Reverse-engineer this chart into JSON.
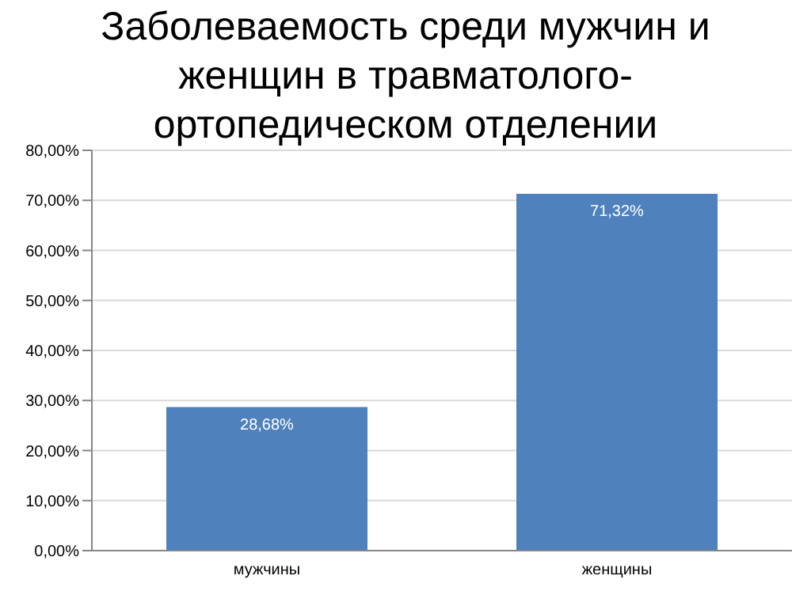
{
  "chart_data": {
    "type": "bar",
    "title": "Заболеваемость среди мужчин и женщин в травматолого-ортопедическом отделении",
    "categories": [
      "мужчины",
      "женщины"
    ],
    "values": [
      28.68,
      71.32
    ],
    "value_labels": [
      "28,68%",
      "71,32%"
    ],
    "color": "#4f81bd",
    "ylim": [
      0,
      80
    ],
    "yticks": [
      {
        "value": 0,
        "label": "0,00%"
      },
      {
        "value": 10,
        "label": "10,00%"
      },
      {
        "value": 20,
        "label": "20,00%"
      },
      {
        "value": 30,
        "label": "30,00%"
      },
      {
        "value": 40,
        "label": "40,00%"
      },
      {
        "value": 50,
        "label": "50,00%"
      },
      {
        "value": 60,
        "label": "60,00%"
      },
      {
        "value": 70,
        "label": "70,00%"
      },
      {
        "value": 80,
        "label": "80,00%"
      }
    ],
    "grid": "y",
    "legend": false
  }
}
